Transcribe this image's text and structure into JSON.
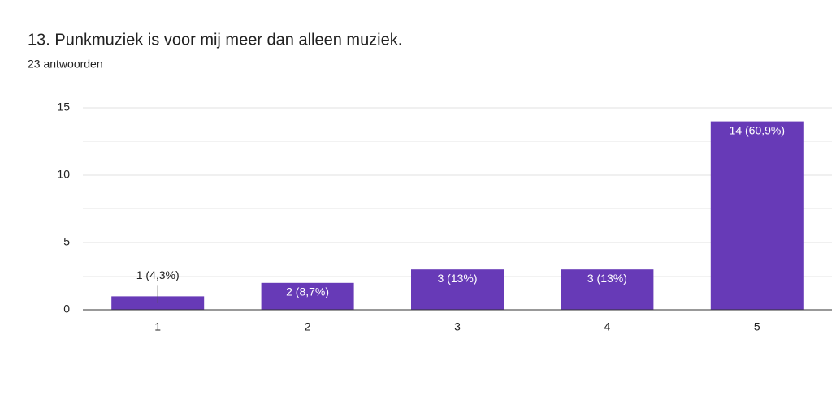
{
  "chart_data": {
    "type": "bar",
    "title": "13. Punkmuziek is voor mij meer dan alleen muziek.",
    "subtitle": "23 antwoorden",
    "categories": [
      "1",
      "2",
      "3",
      "4",
      "5"
    ],
    "values": [
      1,
      2,
      3,
      3,
      14
    ],
    "value_labels": [
      "1 (4,3%)",
      "2 (8,7%)",
      "3 (13%)",
      "3 (13%)",
      "14 (60,9%)"
    ],
    "color": "#673ab7",
    "ylim": [
      0,
      15
    ],
    "yticks": [
      0,
      5,
      10,
      15
    ],
    "minor_yticks": [
      2.5,
      7.5,
      12.5
    ],
    "grid": true
  }
}
